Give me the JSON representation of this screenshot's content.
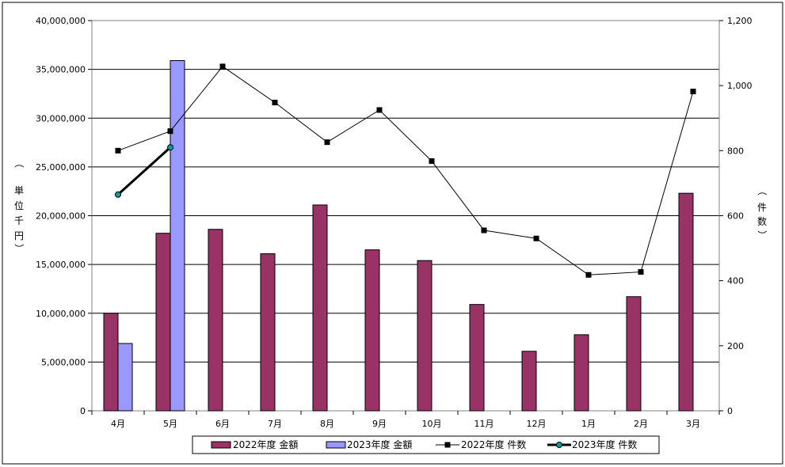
{
  "chart_data": {
    "type": "bar",
    "categories": [
      "4月",
      "5月",
      "6月",
      "7月",
      "8月",
      "9月",
      "10月",
      "11月",
      "12月",
      "1月",
      "2月",
      "3月"
    ],
    "bar_series": [
      {
        "name": "2022年度 金額",
        "color": "#993366",
        "values": [
          10000000,
          18200000,
          18600000,
          16100000,
          21100000,
          16500000,
          15400000,
          10900000,
          6100000,
          7800000,
          11700000,
          22300000
        ]
      },
      {
        "name": "2023年度 金額",
        "color": "#9999FF",
        "values": [
          6900000,
          35900000,
          null,
          null,
          null,
          null,
          null,
          null,
          null,
          null,
          null,
          null
        ]
      }
    ],
    "line_series": [
      {
        "name": "2022年度 件数",
        "color": "#000000",
        "marker": "square",
        "values": [
          800,
          860,
          1059,
          948,
          826,
          925,
          768,
          555,
          530,
          418,
          427,
          982
        ]
      },
      {
        "name": "2023年度 件数",
        "color": "#000000",
        "marker": "circle-teal",
        "values": [
          665,
          810,
          null,
          null,
          null,
          null,
          null,
          null,
          null,
          null,
          null,
          null
        ]
      }
    ],
    "y_left": {
      "label_chars": [
        "単",
        "位",
        "千",
        "円",
        "（",
        "）"
      ],
      "ylim": [
        0,
        40000000
      ],
      "ticks": [
        "0",
        "5,000,000",
        "10,000,000",
        "15,000,000",
        "20,000,000",
        "25,000,000",
        "30,000,000",
        "35,000,000",
        "40,000,000"
      ]
    },
    "y_right": {
      "label_chars": [
        "（",
        "件",
        "数",
        "）"
      ],
      "ylim": [
        0,
        1200
      ],
      "ticks": [
        "0",
        "200",
        "400",
        "600",
        "800",
        "1,000",
        "1,200"
      ]
    },
    "grid": true,
    "legend_position": "bottom"
  }
}
